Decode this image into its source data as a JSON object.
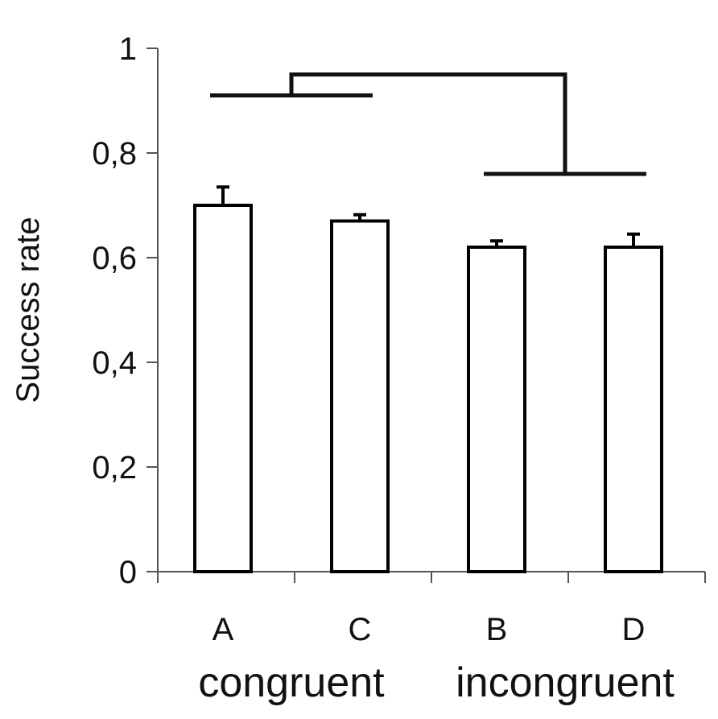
{
  "chart_data": {
    "type": "bar",
    "title": "",
    "xlabel": "",
    "ylabel": "Success rate",
    "ylim": [
      0,
      1
    ],
    "yticks": [
      {
        "value": 0,
        "label": "0"
      },
      {
        "value": 0.2,
        "label": "0,2"
      },
      {
        "value": 0.4,
        "label": "0,4"
      },
      {
        "value": 0.6,
        "label": "0,6"
      },
      {
        "value": 0.8,
        "label": "0,8"
      },
      {
        "value": 1,
        "label": "1"
      }
    ],
    "categories": [
      "A",
      "C",
      "B",
      "D"
    ],
    "values": [
      0.7,
      0.67,
      0.62,
      0.62
    ],
    "errors": [
      0.035,
      0.012,
      0.012,
      0.025
    ],
    "groups": [
      {
        "label": "congruent",
        "categories": [
          "A",
          "C"
        ],
        "bracket_y": 0.91
      },
      {
        "label": "incongruent",
        "categories": [
          "B",
          "D"
        ],
        "bracket_y": 0.76
      }
    ],
    "comparison_bracket_y": 0.95,
    "grid": false,
    "legend": "none",
    "colors": {
      "bar_fill": "#ffffff",
      "bar_stroke": "#000000",
      "axis": "#555555"
    }
  }
}
